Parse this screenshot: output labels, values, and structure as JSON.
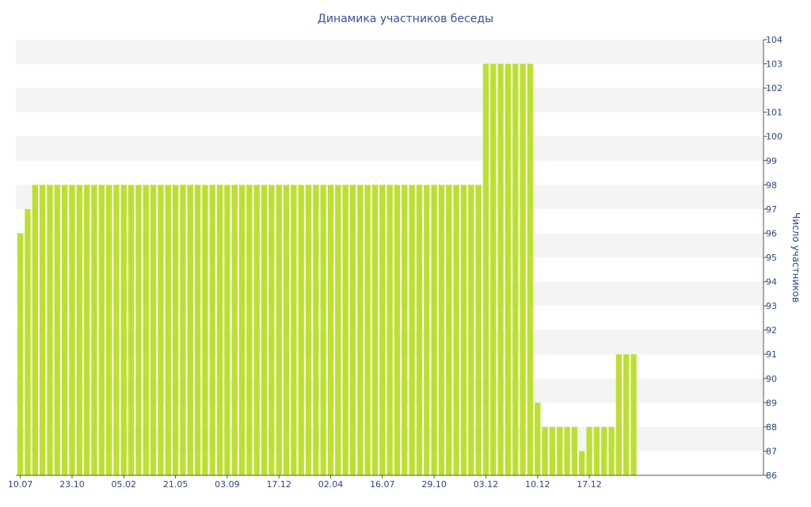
{
  "chart_data": {
    "type": "bar",
    "title": "Динамика участников беседы",
    "xlabel": "",
    "ylabel": "Число участников",
    "y_axis_side": "right",
    "ylim": [
      86,
      104
    ],
    "yticks": [
      86,
      87,
      88,
      89,
      90,
      91,
      92,
      93,
      94,
      95,
      96,
      97,
      98,
      99,
      100,
      101,
      102,
      103,
      104
    ],
    "x_tick_labels": [
      "10.07",
      "23.10",
      "05.02",
      "21.05",
      "03.09",
      "17.12",
      "02.04",
      "16.07",
      "29.10",
      "03.12",
      "10.12",
      "17.12"
    ],
    "x_tick_indices": [
      0,
      7,
      14,
      21,
      28,
      35,
      42,
      49,
      56,
      63,
      70,
      77
    ],
    "values": [
      96,
      97,
      98,
      98,
      98,
      98,
      98,
      98,
      98,
      98,
      98,
      98,
      98,
      98,
      98,
      98,
      98,
      98,
      98,
      98,
      98,
      98,
      98,
      98,
      98,
      98,
      98,
      98,
      98,
      98,
      98,
      98,
      98,
      98,
      98,
      98,
      98,
      98,
      98,
      98,
      98,
      98,
      98,
      98,
      98,
      98,
      98,
      98,
      98,
      98,
      98,
      98,
      98,
      98,
      98,
      98,
      98,
      98,
      98,
      98,
      98,
      98,
      98,
      103,
      103,
      103,
      103,
      103,
      103,
      103,
      89,
      88,
      88,
      88,
      88,
      88,
      87,
      88,
      88,
      88,
      88,
      91,
      91,
      91
    ],
    "grid": "horizontal bands",
    "legend": "none",
    "colors": {
      "bar": "#bde030",
      "band": "#f4f4f4",
      "text": "#2f4585",
      "title": "#3a4f9a",
      "axis": "#555555"
    }
  }
}
